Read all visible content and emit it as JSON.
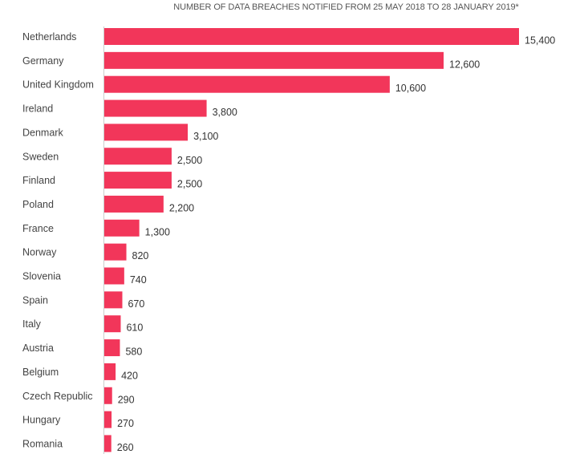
{
  "chart_data": {
    "type": "bar",
    "orientation": "horizontal",
    "title": "NUMBER OF DATA BREACHES NOTIFIED FROM 25 MAY 2018 TO 28 JANUARY 2019*",
    "xlabel": "",
    "ylabel": "",
    "categories": [
      "Netherlands",
      "Germany",
      "United Kingdom",
      "Ireland",
      "Denmark",
      "Sweden",
      "Finland",
      "Poland",
      "France",
      "Norway",
      "Slovenia",
      "Spain",
      "Italy",
      "Austria",
      "Belgium",
      "Czech Republic",
      "Hungary",
      "Romania"
    ],
    "values": [
      15400,
      12600,
      10600,
      3800,
      3100,
      2500,
      2500,
      2200,
      1300,
      820,
      740,
      670,
      610,
      580,
      420,
      290,
      270,
      260
    ],
    "value_labels": [
      "15,400",
      "12,600",
      "10,600",
      "3,800",
      "3,100",
      "2,500",
      "2,500",
      "2,200",
      "1,300",
      "820",
      "740",
      "670",
      "610",
      "580",
      "420",
      "290",
      "270",
      "260"
    ],
    "xlim": [
      0,
      15400
    ],
    "grid": false,
    "legend": "none",
    "bar_color": "#f2365a"
  }
}
